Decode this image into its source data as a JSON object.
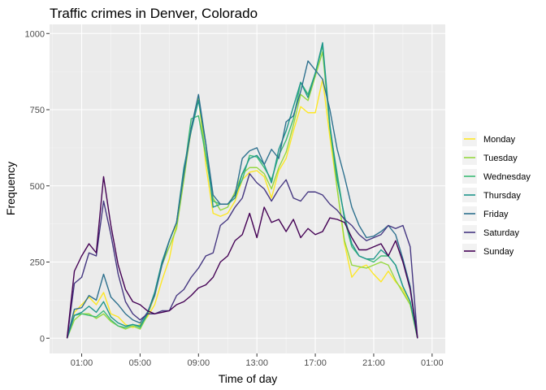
{
  "chart_data": {
    "type": "line",
    "title": "Traffic crimes in Denver, Colorado",
    "xlabel": "Time of day",
    "ylabel": "Frequency",
    "x_unit": "hours since midnight",
    "xlim": [
      -1.2,
      25.9
    ],
    "ylim": [
      -50,
      1030
    ],
    "x_ticks": [
      {
        "value": 1,
        "label": "01:00"
      },
      {
        "value": 5,
        "label": "05:00"
      },
      {
        "value": 9,
        "label": "09:00"
      },
      {
        "value": 13,
        "label": "13:00"
      },
      {
        "value": 17,
        "label": "17:00"
      },
      {
        "value": 21,
        "label": "21:00"
      },
      {
        "value": 25,
        "label": "01:00"
      }
    ],
    "y_ticks": [
      {
        "value": 0,
        "label": "0"
      },
      {
        "value": 250,
        "label": "250"
      },
      {
        "value": 500,
        "label": "500"
      },
      {
        "value": 750,
        "label": "750"
      },
      {
        "value": 1000,
        "label": "1000"
      }
    ],
    "legend_position": "right",
    "grid": true,
    "x": [
      0,
      0.5,
      1,
      1.5,
      2,
      2.5,
      3,
      3.5,
      4,
      4.5,
      5,
      5.5,
      6,
      6.5,
      7,
      7.5,
      8,
      8.5,
      9,
      9.5,
      10,
      10.5,
      11,
      11.5,
      12,
      12.5,
      13,
      13.5,
      14,
      14.5,
      15,
      15.5,
      16,
      16.5,
      17,
      17.5,
      18,
      18.5,
      19,
      19.5,
      20,
      20.5,
      21,
      21.5,
      22,
      22.5,
      23,
      23.5,
      24
    ],
    "series": [
      {
        "name": "Monday",
        "color": "#fde725",
        "values": [
          0,
          85,
          110,
          135,
          110,
          150,
          80,
          70,
          45,
          35,
          45,
          70,
          110,
          190,
          260,
          380,
          540,
          680,
          790,
          570,
          410,
          400,
          410,
          450,
          520,
          545,
          550,
          530,
          460,
          550,
          590,
          680,
          760,
          740,
          740,
          850,
          660,
          490,
          310,
          200,
          230,
          240,
          210,
          185,
          220,
          185,
          160,
          110,
          0
        ]
      },
      {
        "name": "Tuesday",
        "color": "#95d840",
        "values": [
          0,
          60,
          80,
          80,
          65,
          80,
          55,
          40,
          30,
          40,
          30,
          75,
          140,
          240,
          300,
          360,
          520,
          690,
          795,
          600,
          460,
          420,
          430,
          480,
          540,
          560,
          560,
          540,
          490,
          560,
          610,
          700,
          800,
          780,
          860,
          940,
          690,
          490,
          320,
          240,
          235,
          230,
          240,
          250,
          240,
          190,
          150,
          110,
          0
        ]
      },
      {
        "name": "Wednesday",
        "color": "#3cbb75",
        "values": [
          0,
          75,
          80,
          75,
          70,
          90,
          60,
          40,
          35,
          45,
          35,
          80,
          150,
          250,
          320,
          380,
          540,
          720,
          730,
          600,
          450,
          440,
          440,
          470,
          520,
          600,
          595,
          560,
          520,
          600,
          650,
          720,
          840,
          800,
          870,
          960,
          690,
          540,
          390,
          300,
          270,
          260,
          250,
          270,
          270,
          240,
          170,
          120,
          0
        ]
      },
      {
        "name": "Thursday",
        "color": "#1f968b",
        "values": [
          0,
          75,
          85,
          105,
          85,
          120,
          70,
          50,
          40,
          45,
          40,
          80,
          150,
          250,
          320,
          380,
          560,
          680,
          780,
          640,
          430,
          440,
          440,
          460,
          540,
          590,
          600,
          570,
          510,
          620,
          680,
          760,
          840,
          790,
          870,
          970,
          700,
          520,
          400,
          310,
          270,
          260,
          260,
          290,
          270,
          240,
          170,
          120,
          0
        ]
      },
      {
        "name": "Friday",
        "color": "#2d708e",
        "values": [
          0,
          95,
          100,
          140,
          125,
          210,
          135,
          110,
          80,
          60,
          50,
          85,
          140,
          240,
          320,
          380,
          540,
          690,
          800,
          640,
          470,
          440,
          440,
          470,
          590,
          615,
          625,
          570,
          620,
          590,
          710,
          730,
          810,
          910,
          880,
          850,
          750,
          620,
          530,
          430,
          370,
          330,
          335,
          350,
          370,
          340,
          260,
          170,
          0
        ]
      },
      {
        "name": "Saturday",
        "color": "#453781",
        "values": [
          0,
          180,
          200,
          280,
          270,
          450,
          340,
          210,
          120,
          80,
          60,
          80,
          80,
          90,
          90,
          140,
          160,
          200,
          230,
          270,
          280,
          370,
          390,
          430,
          460,
          540,
          510,
          490,
          450,
          490,
          520,
          460,
          450,
          480,
          480,
          470,
          440,
          420,
          390,
          370,
          340,
          320,
          330,
          340,
          370,
          360,
          370,
          300,
          0
        ]
      },
      {
        "name": "Sunday",
        "color": "#440154",
        "values": [
          0,
          220,
          270,
          310,
          280,
          530,
          370,
          240,
          160,
          120,
          110,
          90,
          80,
          85,
          90,
          110,
          120,
          140,
          165,
          175,
          200,
          250,
          270,
          320,
          340,
          410,
          330,
          430,
          380,
          390,
          350,
          390,
          330,
          360,
          340,
          350,
          395,
          390,
          380,
          330,
          290,
          290,
          300,
          310,
          270,
          320,
          250,
          160,
          0
        ]
      }
    ]
  }
}
